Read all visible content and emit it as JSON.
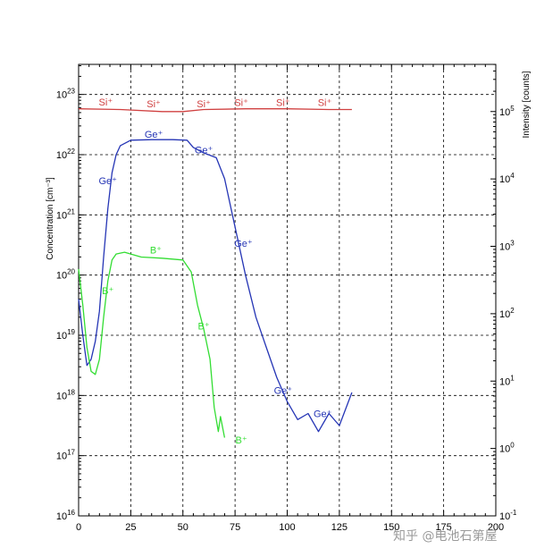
{
  "chart_data": {
    "type": "line",
    "x_range": [
      0,
      200
    ],
    "x_ticks": [
      0,
      25,
      50,
      75,
      100,
      125,
      150,
      175,
      200
    ],
    "x_tick_labels": [
      "0",
      "25",
      "50",
      "75",
      "100",
      "125",
      "150",
      "175",
      "200"
    ],
    "xlabel": "",
    "y_left": {
      "label": "Concentration [cm⁻³]",
      "scale": "log",
      "range_exp": [
        16,
        23.5
      ],
      "tick_exps": [
        16,
        17,
        18,
        19,
        20,
        21,
        22,
        23
      ],
      "tick_base": "10"
    },
    "y_right": {
      "label": "Intensity [counts]",
      "scale": "log",
      "range_exp": [
        -1,
        5.7
      ],
      "tick_exps": [
        -1,
        0,
        1,
        2,
        3,
        4,
        5
      ],
      "tick_base": "10"
    },
    "grid": true,
    "series": [
      {
        "name": "Si⁺",
        "axis": "right",
        "color": "#d04040",
        "points": [
          [
            0,
            5.04
          ],
          [
            20,
            5.03
          ],
          [
            40,
            5.0
          ],
          [
            50,
            5.0
          ],
          [
            60,
            5.03
          ],
          [
            80,
            5.04
          ],
          [
            100,
            5.04
          ],
          [
            120,
            5.03
          ],
          [
            131,
            5.03
          ]
        ],
        "labels": [
          [
            13,
            5.09
          ],
          [
            36,
            5.06
          ],
          [
            60,
            5.06
          ],
          [
            78,
            5.08
          ],
          [
            98,
            5.08
          ],
          [
            118,
            5.08
          ]
        ]
      },
      {
        "name": "Ge⁺",
        "axis": "left",
        "color": "#2535b5",
        "points": [
          [
            0,
            19.6
          ],
          [
            2,
            19.0
          ],
          [
            4,
            18.5
          ],
          [
            6,
            18.6
          ],
          [
            8,
            18.9
          ],
          [
            10,
            19.4
          ],
          [
            12,
            20.3
          ],
          [
            14,
            21.1
          ],
          [
            16,
            21.7
          ],
          [
            18,
            22.0
          ],
          [
            20,
            22.15
          ],
          [
            25,
            22.24
          ],
          [
            35,
            22.25
          ],
          [
            45,
            22.25
          ],
          [
            52,
            22.24
          ],
          [
            55,
            22.12
          ],
          [
            60,
            22.03
          ],
          [
            66,
            21.95
          ],
          [
            70,
            21.6
          ],
          [
            75,
            20.8
          ],
          [
            80,
            20.0
          ],
          [
            85,
            19.3
          ],
          [
            90,
            18.8
          ],
          [
            95,
            18.3
          ],
          [
            100,
            17.9
          ],
          [
            105,
            17.6
          ],
          [
            110,
            17.7
          ],
          [
            115,
            17.4
          ],
          [
            120,
            17.7
          ],
          [
            125,
            17.5
          ],
          [
            131,
            18.05
          ]
        ],
        "labels": [
          [
            36,
            22.28
          ],
          [
            60,
            22.02
          ],
          [
            14,
            21.51
          ],
          [
            79,
            20.47
          ],
          [
            98,
            18.03
          ],
          [
            117,
            17.64
          ]
        ]
      },
      {
        "name": "B⁺",
        "axis": "left",
        "color": "#33dd33",
        "points": [
          [
            0,
            20.1
          ],
          [
            2,
            19.5
          ],
          [
            4,
            18.8
          ],
          [
            6,
            18.4
          ],
          [
            8,
            18.35
          ],
          [
            10,
            18.6
          ],
          [
            12,
            19.3
          ],
          [
            14,
            19.9
          ],
          [
            16,
            20.25
          ],
          [
            18,
            20.35
          ],
          [
            22,
            20.38
          ],
          [
            30,
            20.3
          ],
          [
            40,
            20.28
          ],
          [
            50,
            20.25
          ],
          [
            54,
            20.05
          ],
          [
            57,
            19.5
          ],
          [
            60,
            19.1
          ],
          [
            63,
            18.6
          ],
          [
            65,
            17.8
          ],
          [
            67,
            17.4
          ],
          [
            68,
            17.65
          ],
          [
            70,
            17.3
          ]
        ],
        "labels": [
          [
            37,
            20.36
          ],
          [
            14,
            19.68
          ],
          [
            60,
            19.1
          ],
          [
            78,
            17.2
          ]
        ]
      }
    ]
  },
  "watermark": "知乎 @电池石第屋"
}
